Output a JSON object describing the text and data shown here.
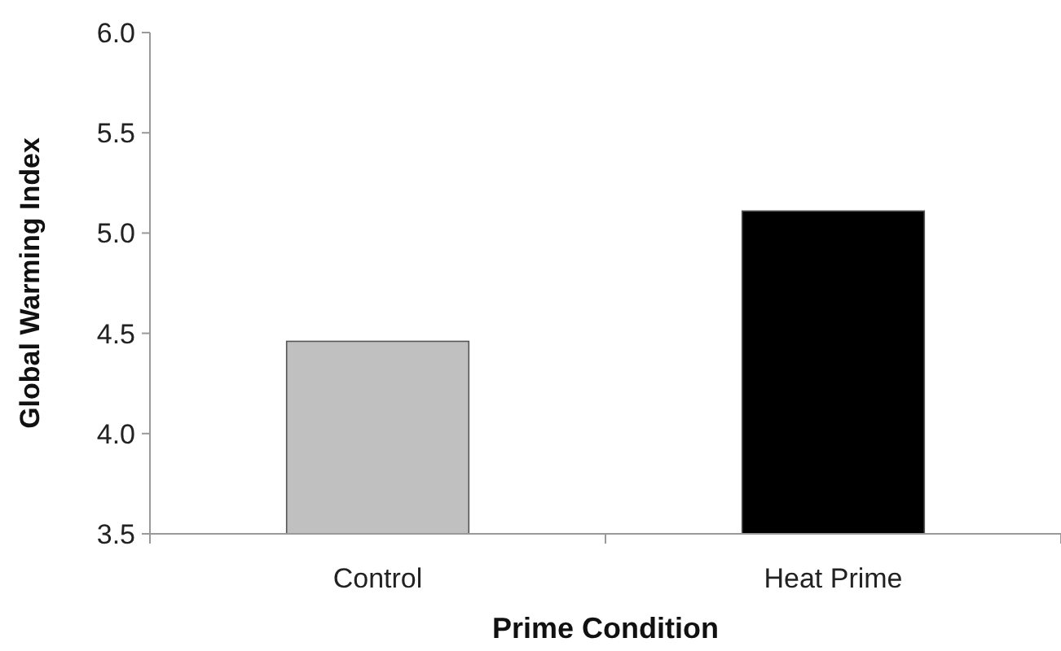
{
  "chart_data": {
    "type": "bar",
    "xlabel": "Prime Condition",
    "ylabel": "Global Warming Index",
    "categories": [
      "Control",
      "Heat Prime"
    ],
    "values": [
      4.46,
      5.11
    ],
    "colors": [
      "#c0c0c0",
      "#000000"
    ],
    "ylim": [
      3.5,
      6.0
    ],
    "yticks": [
      {
        "value": 3.5,
        "label": "3.5"
      },
      {
        "value": 4.0,
        "label": "4.0"
      },
      {
        "value": 4.5,
        "label": "4.5"
      },
      {
        "value": 5.0,
        "label": "5.0"
      },
      {
        "value": 5.5,
        "label": "5.5"
      },
      {
        "value": 6.0,
        "label": "6.0"
      }
    ],
    "grid": false
  }
}
